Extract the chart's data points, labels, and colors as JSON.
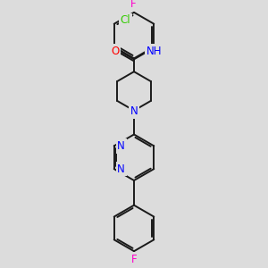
{
  "background_color": "#dcdcdc",
  "bond_color": "#1a1a1a",
  "atom_colors": {
    "F": "#ff00cc",
    "Cl": "#33cc00",
    "O": "#ff0000",
    "N": "#0000ff",
    "C": "#1a1a1a"
  },
  "lw": 1.4,
  "fs": 8.5,
  "figsize": [
    3.0,
    3.0
  ],
  "dpi": 100,
  "xlim": [
    50,
    230
  ],
  "ylim": [
    5,
    295
  ]
}
